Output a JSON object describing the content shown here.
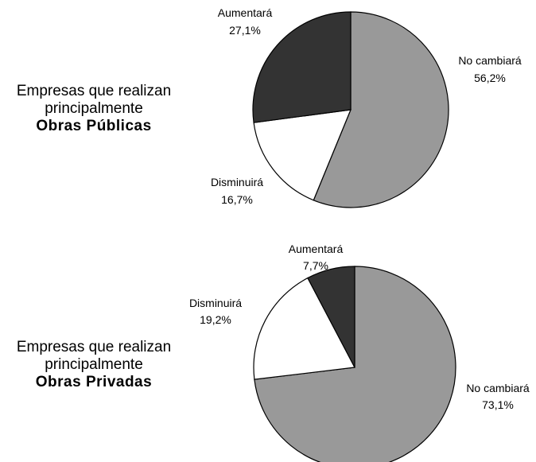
{
  "chart_data": [
    {
      "type": "pie",
      "title_lines": [
        "Empresas que realizan",
        "principalmente",
        "Obras Públicas"
      ],
      "start": "top",
      "direction": "clockwise",
      "slices": [
        {
          "label": "No cambiará",
          "value": 56.2,
          "display": "56,2%",
          "color": "#999999"
        },
        {
          "label": "Disminuirá",
          "value": 16.7,
          "display": "16,7%",
          "color": "#ffffff"
        },
        {
          "label": "Aumentará",
          "value": 27.1,
          "display": "27,1%",
          "color": "#333333"
        }
      ]
    },
    {
      "type": "pie",
      "title_lines": [
        "Empresas que realizan",
        "principalmente",
        "Obras Privadas"
      ],
      "start": "top",
      "direction": "clockwise",
      "slices": [
        {
          "label": "No cambiará",
          "value": 73.1,
          "display": "73,1%",
          "color": "#999999"
        },
        {
          "label": "Disminuirá",
          "value": 19.2,
          "display": "19,2%",
          "color": "#ffffff"
        },
        {
          "label": "Aumentará",
          "value": 7.7,
          "display": "7,7%",
          "color": "#333333"
        }
      ]
    }
  ]
}
